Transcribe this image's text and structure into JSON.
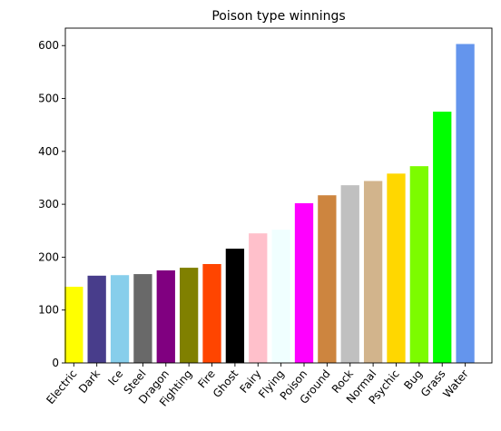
{
  "chart_data": {
    "type": "bar",
    "title": "Poison type winnings",
    "xlabel": "",
    "ylabel": "",
    "categories": [
      "Electric",
      "Dark",
      "Ice",
      "Steel",
      "Dragon",
      "Fighting",
      "Fire",
      "Ghost",
      "Fairy",
      "Flying",
      "Poison",
      "Ground",
      "Rock",
      "Normal",
      "Psychic",
      "Bug",
      "Grass",
      "Water"
    ],
    "values": [
      144,
      165,
      166,
      168,
      175,
      180,
      187,
      216,
      245,
      252,
      302,
      317,
      336,
      344,
      358,
      372,
      475,
      603
    ],
    "colors": [
      "#ffff00",
      "#483d8b",
      "#87ceeb",
      "#696969",
      "#800080",
      "#808000",
      "#ff4500",
      "#000000",
      "#ffc0cb",
      "#f0ffff",
      "#ff00ff",
      "#cd853f",
      "#c0c0c0",
      "#d2b48c",
      "#ffd700",
      "#7cfc00",
      "#00ff00",
      "#6495ed"
    ],
    "ylim": [
      0,
      633
    ],
    "yticks": [
      0,
      100,
      200,
      300,
      400,
      500,
      600
    ],
    "grid": false,
    "legend": "none"
  }
}
